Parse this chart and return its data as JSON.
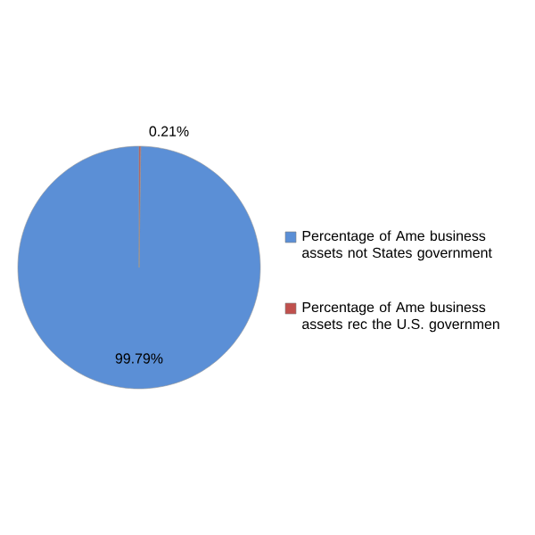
{
  "chart_data": {
    "type": "pie",
    "categories": [
      "Percentage of Ame business assets not States government",
      "Percentage of Ame business assets rec the U.S. governmen"
    ],
    "values": [
      99.79,
      0.21
    ],
    "colors": [
      "#5b8fd6",
      "#c0504d"
    ],
    "value_labels": [
      "99.79%",
      "0.21%"
    ],
    "legend": "right"
  }
}
